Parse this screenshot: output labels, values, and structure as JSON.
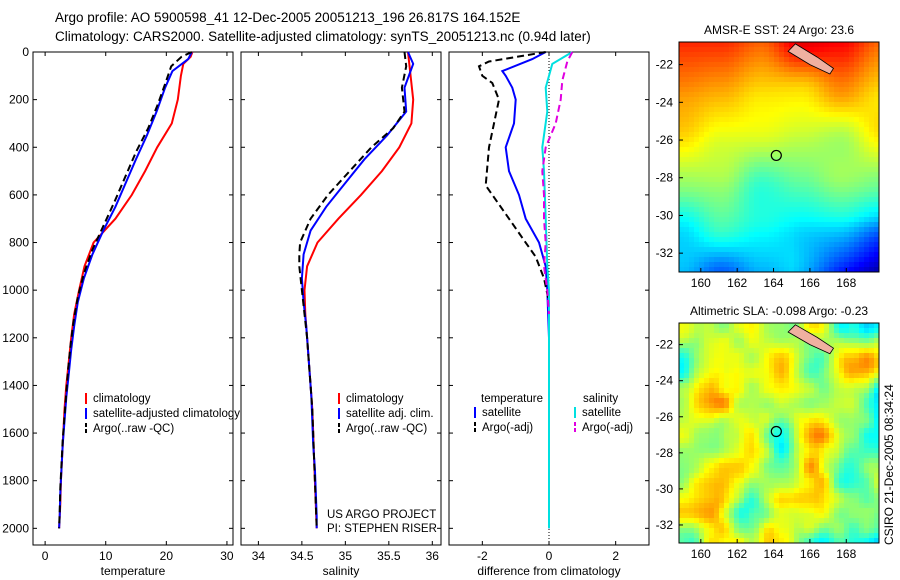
{
  "header": {
    "line1": "Argo profile: AO 5900598_41 12-Dec-2005 20051213_196 26.817S 164.152E",
    "line2": "Climatology: CARS2000. Satellite-adjusted climatology: synTS_20051213.nc (0.94d later)"
  },
  "credit": "CSIRO 21-Dec-2005 08:34:24",
  "depth_ticks": [
    "0",
    "200",
    "400",
    "600",
    "800",
    "1000",
    "1200",
    "1400",
    "1600",
    "1800",
    "2000"
  ],
  "colors": {
    "climatology": "#ff0000",
    "satellite": "#0000ff",
    "argo": "#000000",
    "satellite_salinity": "#00e0e0",
    "argo_salinity": "#e000e0"
  },
  "chart_data": [
    {
      "type": "line",
      "id": "temperature",
      "xlabel": "temperature",
      "xlim": [
        -2,
        31
      ],
      "ylim": [
        2070,
        0
      ],
      "xticks": [
        "0",
        "10",
        "20",
        "30"
      ],
      "legend": [
        "climatology",
        "satellite-adjusted climatology",
        "Argo(..raw -QC)"
      ],
      "legend_placement": "bottom-right",
      "series": [
        {
          "name": "climatology",
          "style": "solid",
          "color": "#ff0000",
          "points": [
            [
              24.3,
              0
            ],
            [
              24.0,
              20
            ],
            [
              22.8,
              50
            ],
            [
              22.4,
              100
            ],
            [
              21.9,
              200
            ],
            [
              20.9,
              300
            ],
            [
              18.5,
              400
            ],
            [
              16.5,
              500
            ],
            [
              14.3,
              600
            ],
            [
              11.6,
              700
            ],
            [
              8.0,
              800
            ],
            [
              6.5,
              900
            ],
            [
              5.6,
              1000
            ],
            [
              4.8,
              1100
            ],
            [
              4.3,
              1200
            ],
            [
              3.9,
              1300
            ],
            [
              3.5,
              1400
            ],
            [
              3.2,
              1500
            ],
            [
              3.0,
              1600
            ],
            [
              2.8,
              1700
            ],
            [
              2.6,
              1800
            ],
            [
              2.5,
              1900
            ],
            [
              2.3,
              2000
            ]
          ]
        },
        {
          "name": "satellite-adjusted climatology",
          "style": "solid",
          "color": "#0000ff",
          "points": [
            [
              24.2,
              0
            ],
            [
              23.6,
              30
            ],
            [
              21.0,
              80
            ],
            [
              19.8,
              150
            ],
            [
              18.4,
              250
            ],
            [
              16.8,
              350
            ],
            [
              15.0,
              450
            ],
            [
              13.3,
              550
            ],
            [
              11.6,
              650
            ],
            [
              9.6,
              750
            ],
            [
              7.8,
              850
            ],
            [
              6.4,
              950
            ],
            [
              5.4,
              1050
            ],
            [
              4.8,
              1150
            ],
            [
              4.3,
              1250
            ],
            [
              3.9,
              1350
            ],
            [
              3.5,
              1450
            ],
            [
              3.2,
              1550
            ],
            [
              2.9,
              1650
            ],
            [
              2.7,
              1750
            ],
            [
              2.5,
              1850
            ],
            [
              2.4,
              1950
            ],
            [
              2.3,
              2000
            ]
          ]
        },
        {
          "name": "Argo(..raw -QC)",
          "style": "dashed",
          "color": "#000000",
          "points": [
            [
              24.2,
              0
            ],
            [
              22.5,
              20
            ],
            [
              20.8,
              60
            ],
            [
              20.0,
              120
            ],
            [
              18.6,
              220
            ],
            [
              17.0,
              320
            ],
            [
              15.0,
              420
            ],
            [
              13.3,
              520
            ],
            [
              11.6,
              620
            ],
            [
              9.8,
              720
            ],
            [
              7.8,
              830
            ],
            [
              6.4,
              930
            ],
            [
              5.4,
              1030
            ],
            [
              4.7,
              1130
            ],
            [
              4.2,
              1230
            ],
            [
              3.8,
              1330
            ],
            [
              3.5,
              1430
            ],
            [
              3.2,
              1530
            ],
            [
              2.9,
              1630
            ],
            [
              2.7,
              1730
            ],
            [
              2.5,
              1830
            ],
            [
              2.4,
              1930
            ],
            [
              2.3,
              2000
            ]
          ]
        }
      ]
    },
    {
      "type": "line",
      "id": "salinity",
      "xlabel": "salinity",
      "xlim": [
        33.8,
        36.1
      ],
      "ylim": [
        2070,
        0
      ],
      "xticks": [
        "34",
        "34.5",
        "35",
        "35.5",
        "36"
      ],
      "legend": [
        "climatology",
        "satellite adj. clim.",
        "Argo(..raw -QC)"
      ],
      "legend_placement": "bottom-right",
      "annotation": [
        "US ARGO PROJECT",
        "PI: STEPHEN RISER"
      ],
      "series": [
        {
          "name": "climatology",
          "style": "solid",
          "color": "#ff0000",
          "points": [
            [
              35.72,
              0
            ],
            [
              35.75,
              100
            ],
            [
              35.78,
              200
            ],
            [
              35.76,
              300
            ],
            [
              35.62,
              400
            ],
            [
              35.42,
              500
            ],
            [
              35.18,
              600
            ],
            [
              34.92,
              700
            ],
            [
              34.68,
              800
            ],
            [
              34.56,
              900
            ],
            [
              34.53,
              1000
            ],
            [
              34.54,
              1100
            ],
            [
              34.56,
              1200
            ],
            [
              34.58,
              1300
            ],
            [
              34.6,
              1400
            ],
            [
              34.62,
              1500
            ],
            [
              34.63,
              1600
            ],
            [
              34.64,
              1700
            ],
            [
              34.65,
              1800
            ],
            [
              34.66,
              1900
            ],
            [
              34.67,
              2000
            ]
          ]
        },
        {
          "name": "satellite adj. clim.",
          "style": "solid",
          "color": "#0000ff",
          "points": [
            [
              35.72,
              0
            ],
            [
              35.78,
              50
            ],
            [
              35.68,
              150
            ],
            [
              35.7,
              250
            ],
            [
              35.48,
              350
            ],
            [
              35.22,
              450
            ],
            [
              35.0,
              550
            ],
            [
              34.78,
              650
            ],
            [
              34.6,
              750
            ],
            [
              34.52,
              850
            ],
            [
              34.5,
              950
            ],
            [
              34.52,
              1050
            ],
            [
              34.55,
              1150
            ],
            [
              34.57,
              1250
            ],
            [
              34.59,
              1350
            ],
            [
              34.61,
              1450
            ],
            [
              34.62,
              1550
            ],
            [
              34.63,
              1650
            ],
            [
              34.65,
              1750
            ],
            [
              34.66,
              1850
            ],
            [
              34.67,
              1950
            ],
            [
              34.67,
              2000
            ]
          ]
        },
        {
          "name": "Argo(..raw -QC)",
          "style": "dashed",
          "color": "#000000",
          "points": [
            [
              35.68,
              0
            ],
            [
              35.7,
              60
            ],
            [
              35.65,
              150
            ],
            [
              35.68,
              250
            ],
            [
              35.55,
              320
            ],
            [
              35.3,
              400
            ],
            [
              35.05,
              500
            ],
            [
              34.8,
              600
            ],
            [
              34.6,
              700
            ],
            [
              34.48,
              800
            ],
            [
              34.47,
              850
            ],
            [
              34.47,
              900
            ],
            [
              34.5,
              1000
            ],
            [
              34.53,
              1100
            ],
            [
              34.56,
              1200
            ],
            [
              34.58,
              1300
            ],
            [
              34.6,
              1400
            ],
            [
              34.62,
              1500
            ],
            [
              34.63,
              1600
            ],
            [
              34.64,
              1700
            ],
            [
              34.65,
              1800
            ],
            [
              34.66,
              1900
            ],
            [
              34.67,
              2000
            ]
          ]
        }
      ]
    },
    {
      "type": "line",
      "id": "difference",
      "xlabel": "difference from climatology",
      "xlim": [
        -3.0,
        3.0
      ],
      "ylim": [
        2070,
        0
      ],
      "xticks": [
        "-2",
        "0",
        "2"
      ],
      "zero_line": "dotted",
      "legend_groups": [
        {
          "title": "temperature",
          "items": [
            "satellite",
            "Argo(-adj)"
          ]
        },
        {
          "title": "salinity",
          "items": [
            "satellite",
            "Argo(-adj)"
          ]
        }
      ],
      "legend_placement": "bottom",
      "series": [
        {
          "name": "temperature satellite",
          "style": "solid",
          "color": "#0000ff",
          "points": [
            [
              -0.1,
              0
            ],
            [
              -0.5,
              30
            ],
            [
              -1.4,
              80
            ],
            [
              -1.3,
              100
            ],
            [
              -1.1,
              150
            ],
            [
              -1.0,
              200
            ],
            [
              -1.05,
              300
            ],
            [
              -1.3,
              400
            ],
            [
              -1.2,
              500
            ],
            [
              -0.9,
              600
            ],
            [
              -0.7,
              700
            ],
            [
              -0.3,
              800
            ],
            [
              -0.1,
              900
            ],
            [
              -0.05,
              1000
            ],
            [
              0,
              1200
            ],
            [
              0,
              2000
            ]
          ]
        },
        {
          "name": "temperature Argo(-adj)",
          "style": "dashed",
          "color": "#000000",
          "points": [
            [
              -0.1,
              0
            ],
            [
              -1.8,
              40
            ],
            [
              -2.1,
              60
            ],
            [
              -2.0,
              100
            ],
            [
              -1.7,
              130
            ],
            [
              -1.5,
              200
            ],
            [
              -1.65,
              300
            ],
            [
              -1.8,
              400
            ],
            [
              -1.9,
              560
            ],
            [
              -1.2,
              700
            ],
            [
              -0.8,
              780
            ],
            [
              -0.4,
              860
            ],
            [
              -0.15,
              950
            ],
            [
              0,
              1050
            ]
          ]
        },
        {
          "name": "salinity satellite",
          "style": "solid",
          "color": "#00e0e0",
          "points": [
            [
              0.7,
              0
            ],
            [
              0.1,
              50
            ],
            [
              -0.1,
              150
            ],
            [
              -0.05,
              250
            ],
            [
              -0.2,
              400
            ],
            [
              -0.15,
              500
            ],
            [
              -0.1,
              700
            ],
            [
              -0.05,
              900
            ],
            [
              0,
              1000
            ],
            [
              0,
              2000
            ]
          ]
        },
        {
          "name": "salinity Argo(-adj)",
          "style": "dashed",
          "color": "#e000e0",
          "points": [
            [
              0.7,
              0
            ],
            [
              0.55,
              40
            ],
            [
              0.4,
              120
            ],
            [
              0.35,
              200
            ],
            [
              0.2,
              300
            ],
            [
              -0.1,
              400
            ],
            [
              -0.2,
              500
            ],
            [
              -0.15,
              600
            ],
            [
              -0.15,
              700
            ],
            [
              -0.1,
              800
            ],
            [
              -0.15,
              900
            ],
            [
              -0.05,
              1000
            ],
            [
              0,
              1100
            ]
          ]
        }
      ]
    },
    {
      "type": "heatmap",
      "id": "sst-map",
      "title": "AMSR-E SST: 24 Argo: 23.6",
      "xlim": [
        158.8,
        169.8
      ],
      "ylim": [
        -33,
        -20.8
      ],
      "xticks": [
        "160",
        "162",
        "164",
        "166",
        "168"
      ],
      "yticks": [
        "-22",
        "-24",
        "-26",
        "-28",
        "-30",
        "-32"
      ],
      "marker": {
        "lon": 164.152,
        "lat": -26.817
      },
      "palette": "jet"
    },
    {
      "type": "heatmap",
      "id": "sla-map",
      "title": "Altimetric SLA: -0.098 Argo: -0.23",
      "xlim": [
        158.8,
        169.8
      ],
      "ylim": [
        -33,
        -20.8
      ],
      "xticks": [
        "160",
        "162",
        "164",
        "166",
        "168"
      ],
      "yticks": [
        "-22",
        "-24",
        "-26",
        "-28",
        "-30",
        "-32"
      ],
      "marker": {
        "lon": 164.152,
        "lat": -26.817
      },
      "palette": "jet"
    }
  ]
}
